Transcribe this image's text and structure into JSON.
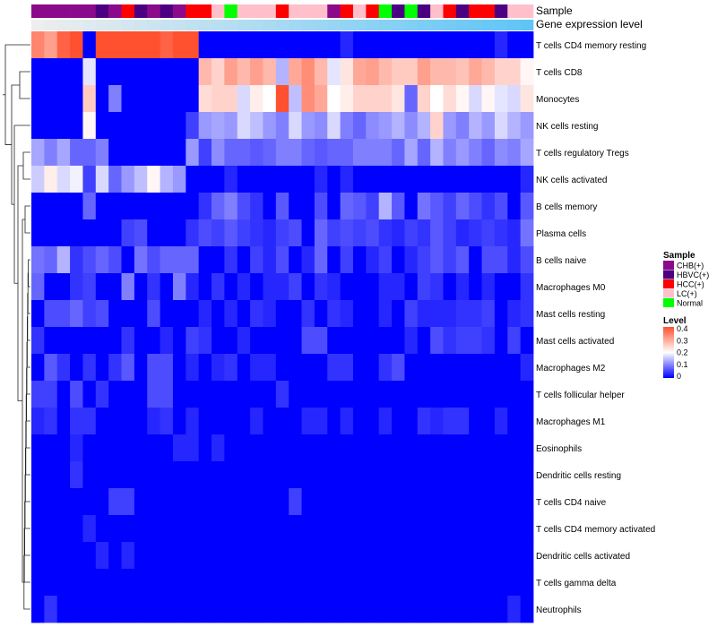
{
  "chart_data": {
    "type": "heatmap",
    "annotation_tracks": [
      "Sample",
      "Gene expression level"
    ],
    "sample_groups": [
      {
        "name": "CHB(+)",
        "color": "#8b0a8b"
      },
      {
        "name": "HBVC(+)",
        "color": "#4b0082"
      },
      {
        "name": "HCC(+)",
        "color": "#ff0000"
      },
      {
        "name": "LC(+)",
        "color": "#ffc0cb"
      },
      {
        "name": "Normal",
        "color": "#00ff00"
      }
    ],
    "sample_annotation": [
      0,
      0,
      0,
      0,
      0,
      1,
      0,
      2,
      1,
      0,
      1,
      0,
      2,
      2,
      3,
      4,
      3,
      3,
      3,
      2,
      3,
      3,
      3,
      0,
      2,
      3,
      2,
      4,
      1,
      4,
      1,
      3,
      2,
      1,
      2,
      2,
      1,
      3,
      3
    ],
    "expression_gradient": [
      "#eeeeee",
      "#5fc5f5"
    ],
    "legend": {
      "sample_title": "Sample",
      "level_title": "Level",
      "level_ticks": [
        "0.4",
        "0.3",
        "0.2",
        "0.1",
        "0"
      ],
      "level_range": [
        0,
        0.4
      ],
      "level_colors": [
        "#0000ff",
        "#ffffff",
        "#ff5030"
      ]
    },
    "rows": [
      "T cells CD4 memory resting",
      "T cells CD8",
      "Monocytes",
      "NK cells resting",
      "T cells regulatory  Tregs",
      "NK cells activated",
      "B cells memory",
      "Plasma cells",
      "B cells naive",
      "Macrophages M0",
      "Mast cells resting",
      "Mast cells activated",
      "Macrophages M2",
      "T cells follicular helper",
      "Macrophages M1",
      "Eosinophils",
      "Dendritic cells resting",
      "T cells CD4 naive",
      "T cells CD4 memory activated",
      "Dendritic cells activated",
      "T cells gamma delta",
      "Neutrophils"
    ],
    "values": [
      [
        0.34,
        0.31,
        0.38,
        0.4,
        0.0,
        0.4,
        0.4,
        0.4,
        0.4,
        0.4,
        0.38,
        0.4,
        0.4,
        0.0,
        0.0,
        0.0,
        0.0,
        0.0,
        0.0,
        0.0,
        0.0,
        0.0,
        0.0,
        0.0,
        0.03,
        0.0,
        0.0,
        0.0,
        0.0,
        0.0,
        0.0,
        0.0,
        0.0,
        0.0,
        0.0,
        0.0,
        0.03,
        0.0,
        0.0
      ],
      [
        0.0,
        0.0,
        0.0,
        0.0,
        0.18,
        0.0,
        0.0,
        0.0,
        0.0,
        0.0,
        0.0,
        0.0,
        0.0,
        0.28,
        0.25,
        0.31,
        0.28,
        0.31,
        0.28,
        0.14,
        0.3,
        0.33,
        0.28,
        0.18,
        0.23,
        0.3,
        0.31,
        0.28,
        0.26,
        0.26,
        0.31,
        0.28,
        0.28,
        0.27,
        0.3,
        0.28,
        0.25,
        0.25,
        0.21
      ],
      [
        0.0,
        0.0,
        0.0,
        0.0,
        0.26,
        0.0,
        0.1,
        0.0,
        0.0,
        0.0,
        0.0,
        0.0,
        0.0,
        0.24,
        0.25,
        0.25,
        0.17,
        0.22,
        0.2,
        0.4,
        0.15,
        0.33,
        0.3,
        0.2,
        0.22,
        0.25,
        0.25,
        0.25,
        0.23,
        0.08,
        0.25,
        0.2,
        0.24,
        0.21,
        0.17,
        0.21,
        0.18,
        0.17,
        0.23
      ],
      [
        0.0,
        0.0,
        0.0,
        0.0,
        0.21,
        0.0,
        0.0,
        0.0,
        0.0,
        0.0,
        0.0,
        0.0,
        0.05,
        0.12,
        0.13,
        0.12,
        0.17,
        0.15,
        0.12,
        0.1,
        0.17,
        0.12,
        0.11,
        0.17,
        0.1,
        0.08,
        0.11,
        0.12,
        0.14,
        0.11,
        0.14,
        0.25,
        0.12,
        0.1,
        0.14,
        0.12,
        0.17,
        0.14,
        0.12
      ],
      [
        0.13,
        0.1,
        0.13,
        0.08,
        0.08,
        0.1,
        0.0,
        0.0,
        0.0,
        0.0,
        0.0,
        0.0,
        0.12,
        0.05,
        0.11,
        0.08,
        0.08,
        0.07,
        0.08,
        0.1,
        0.1,
        0.08,
        0.07,
        0.08,
        0.08,
        0.1,
        0.1,
        0.1,
        0.08,
        0.13,
        0.08,
        0.14,
        0.1,
        0.12,
        0.1,
        0.08,
        0.11,
        0.1,
        0.13
      ],
      [
        0.16,
        0.22,
        0.17,
        0.19,
        0.05,
        0.17,
        0.08,
        0.12,
        0.15,
        0.21,
        0.14,
        0.12,
        0.0,
        0.0,
        0.0,
        0.03,
        0.0,
        0.0,
        0.0,
        0.0,
        0.0,
        0.0,
        0.03,
        0.0,
        0.03,
        0.0,
        0.0,
        0.0,
        0.0,
        0.0,
        0.0,
        0.0,
        0.0,
        0.0,
        0.0,
        0.0,
        0.0,
        0.0,
        0.03
      ],
      [
        0.0,
        0.0,
        0.0,
        0.0,
        0.08,
        0.0,
        0.0,
        0.0,
        0.0,
        0.0,
        0.0,
        0.0,
        0.0,
        0.04,
        0.08,
        0.1,
        0.06,
        0.04,
        0.0,
        0.07,
        0.0,
        0.0,
        0.06,
        0.0,
        0.08,
        0.07,
        0.05,
        0.14,
        0.07,
        0.0,
        0.09,
        0.07,
        0.05,
        0.08,
        0.06,
        0.04,
        0.06,
        0.0,
        0.07
      ],
      [
        0.0,
        0.0,
        0.0,
        0.0,
        0.0,
        0.0,
        0.0,
        0.05,
        0.06,
        0.0,
        0.0,
        0.0,
        0.04,
        0.06,
        0.05,
        0.07,
        0.05,
        0.04,
        0.03,
        0.05,
        0.06,
        0.0,
        0.08,
        0.05,
        0.06,
        0.05,
        0.06,
        0.04,
        0.03,
        0.05,
        0.04,
        0.07,
        0.05,
        0.03,
        0.04,
        0.05,
        0.04,
        0.03,
        0.09
      ],
      [
        0.09,
        0.08,
        0.14,
        0.04,
        0.06,
        0.08,
        0.06,
        0.0,
        0.09,
        0.06,
        0.08,
        0.08,
        0.08,
        0.0,
        0.0,
        0.04,
        0.0,
        0.05,
        0.03,
        0.06,
        0.0,
        0.03,
        0.08,
        0.0,
        0.05,
        0.0,
        0.03,
        0.05,
        0.0,
        0.03,
        0.05,
        0.07,
        0.05,
        0.07,
        0.0,
        0.06,
        0.06,
        0.03,
        0.06
      ],
      [
        0.08,
        0.0,
        0.0,
        0.04,
        0.05,
        0.0,
        0.0,
        0.1,
        0.0,
        0.04,
        0.0,
        0.1,
        0.03,
        0.0,
        0.04,
        0.0,
        0.03,
        0.0,
        0.03,
        0.03,
        0.05,
        0.0,
        0.04,
        0.03,
        0.0,
        0.0,
        0.0,
        0.03,
        0.03,
        0.0,
        0.05,
        0.04,
        0.0,
        0.03,
        0.0,
        0.03,
        0.0,
        0.0,
        0.04
      ],
      [
        0.0,
        0.06,
        0.06,
        0.08,
        0.05,
        0.06,
        0.0,
        0.0,
        0.0,
        0.06,
        0.0,
        0.0,
        0.0,
        0.03,
        0.0,
        0.03,
        0.0,
        0.04,
        0.03,
        0.0,
        0.0,
        0.04,
        0.0,
        0.04,
        0.03,
        0.0,
        0.0,
        0.03,
        0.0,
        0.05,
        0.03,
        0.03,
        0.03,
        0.04,
        0.04,
        0.05,
        0.0,
        0.03,
        0.04
      ],
      [
        0.04,
        0.0,
        0.0,
        0.0,
        0.0,
        0.0,
        0.0,
        0.04,
        0.0,
        0.0,
        0.03,
        0.0,
        0.05,
        0.04,
        0.0,
        0.0,
        0.03,
        0.0,
        0.0,
        0.0,
        0.0,
        0.06,
        0.06,
        0.0,
        0.0,
        0.0,
        0.0,
        0.0,
        0.0,
        0.03,
        0.0,
        0.06,
        0.04,
        0.05,
        0.05,
        0.04,
        0.0,
        0.05,
        0.0
      ],
      [
        0.0,
        0.07,
        0.04,
        0.0,
        0.04,
        0.0,
        0.04,
        0.07,
        0.0,
        0.06,
        0.06,
        0.0,
        0.03,
        0.0,
        0.03,
        0.04,
        0.0,
        0.03,
        0.03,
        0.0,
        0.0,
        0.0,
        0.0,
        0.04,
        0.04,
        0.0,
        0.0,
        0.04,
        0.06,
        0.0,
        0.0,
        0.0,
        0.0,
        0.0,
        0.0,
        0.0,
        0.0,
        0.0,
        0.03
      ],
      [
        0.05,
        0.05,
        0.0,
        0.06,
        0.0,
        0.04,
        0.0,
        0.0,
        0.0,
        0.06,
        0.06,
        0.0,
        0.0,
        0.0,
        0.0,
        0.0,
        0.0,
        0.0,
        0.0,
        0.04,
        0.0,
        0.0,
        0.0,
        0.0,
        0.0,
        0.0,
        0.0,
        0.0,
        0.0,
        0.0,
        0.0,
        0.0,
        0.0,
        0.0,
        0.0,
        0.0,
        0.0,
        0.0,
        0.0
      ],
      [
        0.03,
        0.04,
        0.0,
        0.04,
        0.04,
        0.0,
        0.0,
        0.0,
        0.0,
        0.03,
        0.04,
        0.0,
        0.03,
        0.0,
        0.0,
        0.0,
        0.0,
        0.03,
        0.0,
        0.0,
        0.0,
        0.03,
        0.03,
        0.0,
        0.03,
        0.0,
        0.0,
        0.03,
        0.0,
        0.0,
        0.04,
        0.03,
        0.04,
        0.04,
        0.0,
        0.0,
        0.03,
        0.0,
        0.0
      ],
      [
        0.0,
        0.0,
        0.0,
        0.03,
        0.0,
        0.0,
        0.0,
        0.0,
        0.0,
        0.0,
        0.0,
        0.03,
        0.03,
        0.0,
        0.03,
        0.0,
        0.0,
        0.0,
        0.0,
        0.0,
        0.0,
        0.0,
        0.0,
        0.0,
        0.0,
        0.0,
        0.0,
        0.0,
        0.0,
        0.0,
        0.0,
        0.0,
        0.0,
        0.0,
        0.0,
        0.0,
        0.0,
        0.0,
        0.0
      ],
      [
        0.0,
        0.0,
        0.0,
        0.04,
        0.0,
        0.0,
        0.0,
        0.0,
        0.0,
        0.0,
        0.0,
        0.0,
        0.0,
        0.0,
        0.0,
        0.0,
        0.0,
        0.0,
        0.0,
        0.0,
        0.0,
        0.0,
        0.0,
        0.0,
        0.0,
        0.0,
        0.0,
        0.0,
        0.0,
        0.0,
        0.0,
        0.0,
        0.0,
        0.0,
        0.0,
        0.0,
        0.0,
        0.0,
        0.0
      ],
      [
        0.0,
        0.0,
        0.0,
        0.0,
        0.0,
        0.0,
        0.05,
        0.05,
        0.0,
        0.0,
        0.0,
        0.0,
        0.0,
        0.0,
        0.0,
        0.0,
        0.0,
        0.0,
        0.0,
        0.0,
        0.05,
        0.0,
        0.0,
        0.0,
        0.0,
        0.0,
        0.0,
        0.0,
        0.0,
        0.0,
        0.0,
        0.0,
        0.0,
        0.0,
        0.0,
        0.0,
        0.0,
        0.0,
        0.0
      ],
      [
        0.0,
        0.0,
        0.0,
        0.0,
        0.03,
        0.0,
        0.0,
        0.0,
        0.0,
        0.0,
        0.0,
        0.0,
        0.0,
        0.0,
        0.0,
        0.0,
        0.0,
        0.0,
        0.0,
        0.0,
        0.0,
        0.0,
        0.0,
        0.0,
        0.0,
        0.0,
        0.0,
        0.0,
        0.0,
        0.0,
        0.0,
        0.0,
        0.0,
        0.0,
        0.0,
        0.0,
        0.0,
        0.0,
        0.0
      ],
      [
        0.0,
        0.0,
        0.0,
        0.0,
        0.0,
        0.03,
        0.0,
        0.03,
        0.0,
        0.0,
        0.0,
        0.0,
        0.0,
        0.0,
        0.0,
        0.0,
        0.0,
        0.0,
        0.0,
        0.0,
        0.0,
        0.0,
        0.0,
        0.0,
        0.0,
        0.0,
        0.0,
        0.0,
        0.0,
        0.0,
        0.0,
        0.0,
        0.0,
        0.0,
        0.0,
        0.0,
        0.0,
        0.0,
        0.0
      ],
      [
        0.0,
        0.0,
        0.0,
        0.0,
        0.0,
        0.0,
        0.0,
        0.0,
        0.0,
        0.0,
        0.0,
        0.0,
        0.0,
        0.0,
        0.0,
        0.0,
        0.0,
        0.0,
        0.0,
        0.0,
        0.0,
        0.0,
        0.0,
        0.0,
        0.0,
        0.0,
        0.0,
        0.0,
        0.0,
        0.0,
        0.0,
        0.0,
        0.0,
        0.0,
        0.0,
        0.0,
        0.0,
        0.0,
        0.0
      ],
      [
        0.0,
        0.04,
        0.0,
        0.0,
        0.0,
        0.0,
        0.0,
        0.0,
        0.0,
        0.0,
        0.0,
        0.0,
        0.0,
        0.0,
        0.0,
        0.0,
        0.0,
        0.0,
        0.0,
        0.0,
        0.0,
        0.0,
        0.0,
        0.0,
        0.0,
        0.0,
        0.0,
        0.0,
        0.0,
        0.0,
        0.0,
        0.0,
        0.0,
        0.0,
        0.0,
        0.0,
        0.0,
        0.03,
        0.0
      ]
    ]
  }
}
